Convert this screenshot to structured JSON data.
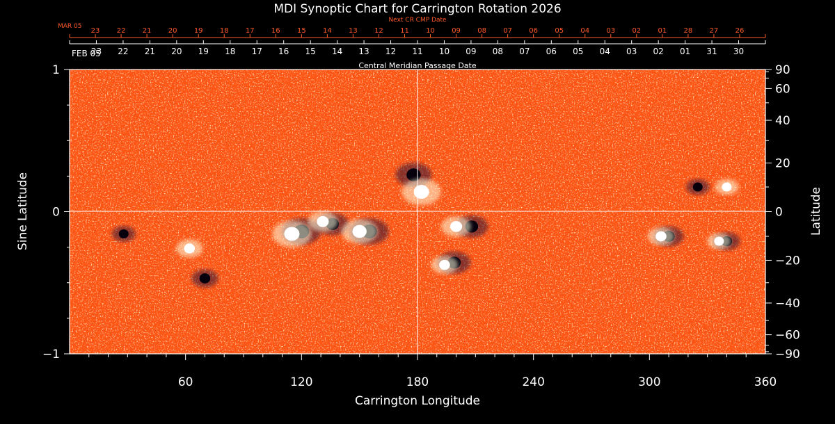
{
  "chart_data": {
    "type": "heatmap",
    "title": "MDI Synoptic Chart for Carrington Rotation 2026",
    "xlabel": "Carrington Longitude",
    "ylabel": "Sine Latitude",
    "y2label": "Latitude",
    "xlim": [
      0,
      360
    ],
    "ylim": [
      -1,
      1
    ],
    "x_ticks": [
      60,
      120,
      180,
      240,
      300,
      360
    ],
    "y_ticks": [
      -1,
      0,
      1
    ],
    "lat_ticks": [
      90,
      60,
      40,
      20,
      0,
      -20,
      -40,
      -60,
      -90
    ],
    "lat_tick_labels": [
      "90",
      "60",
      "40",
      "20",
      "0",
      "−20",
      "−40",
      "−60",
      "−90"
    ],
    "center_meridian_longitude": 180,
    "colormap": {
      "positive": "#ffffe0",
      "neutral": "#ff5a14",
      "negative": "#1a0a3a"
    },
    "cmp_axis": {
      "label": "Central Meridian Passage Date",
      "start_label": "FEB 05",
      "dates": [
        "23",
        "22",
        "21",
        "20",
        "19",
        "18",
        "17",
        "16",
        "15",
        "14",
        "13",
        "12",
        "11",
        "10",
        "09",
        "08",
        "07",
        "06",
        "05",
        "04",
        "03",
        "02",
        "01",
        "31",
        "30"
      ]
    },
    "next_cr_axis": {
      "label": "Next CR CMP Date",
      "start_label": "MAR 05",
      "dates": [
        "23",
        "22",
        "21",
        "20",
        "19",
        "18",
        "17",
        "16",
        "15",
        "14",
        "13",
        "12",
        "11",
        "10",
        "09",
        "08",
        "07",
        "06",
        "05",
        "04",
        "03",
        "02",
        "01",
        "28",
        "27",
        "26"
      ]
    },
    "regions": [
      {
        "lon": 120,
        "lat": -8,
        "polarity": "negative",
        "strength": 1.0
      },
      {
        "lon": 115,
        "lat": -9,
        "polarity": "positive",
        "strength": 1.0
      },
      {
        "lon": 136,
        "lat": -5,
        "polarity": "negative",
        "strength": 0.8
      },
      {
        "lon": 131,
        "lat": -4,
        "polarity": "positive",
        "strength": 0.7
      },
      {
        "lon": 155,
        "lat": -8,
        "polarity": "negative",
        "strength": 1.0
      },
      {
        "lon": 150,
        "lat": -8,
        "polarity": "positive",
        "strength": 0.9
      },
      {
        "lon": 178,
        "lat": 15,
        "polarity": "negative",
        "strength": 0.9
      },
      {
        "lon": 182,
        "lat": 8,
        "polarity": "positive",
        "strength": 1.0
      },
      {
        "lon": 208,
        "lat": -6,
        "polarity": "negative",
        "strength": 0.8
      },
      {
        "lon": 200,
        "lat": -6,
        "polarity": "positive",
        "strength": 0.7
      },
      {
        "lon": 199,
        "lat": -21,
        "polarity": "negative",
        "strength": 0.8
      },
      {
        "lon": 194,
        "lat": -22,
        "polarity": "positive",
        "strength": 0.6
      },
      {
        "lon": 310,
        "lat": -10,
        "polarity": "negative",
        "strength": 0.7
      },
      {
        "lon": 306,
        "lat": -10,
        "polarity": "positive",
        "strength": 0.6
      },
      {
        "lon": 340,
        "lat": -12,
        "polarity": "negative",
        "strength": 0.6
      },
      {
        "lon": 336,
        "lat": -12,
        "polarity": "positive",
        "strength": 0.5
      },
      {
        "lon": 70,
        "lat": -28,
        "polarity": "negative",
        "strength": 0.6
      },
      {
        "lon": 62,
        "lat": -15,
        "polarity": "positive",
        "strength": 0.6
      },
      {
        "lon": 28,
        "lat": -9,
        "polarity": "negative",
        "strength": 0.5
      },
      {
        "lon": 325,
        "lat": 10,
        "polarity": "negative",
        "strength": 0.5
      },
      {
        "lon": 340,
        "lat": 10,
        "polarity": "positive",
        "strength": 0.5
      }
    ]
  }
}
